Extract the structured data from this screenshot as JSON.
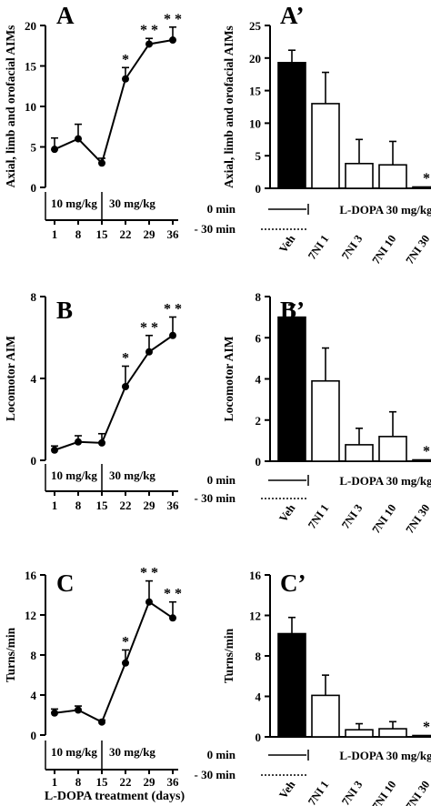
{
  "x_axis_title": "L-DOPA treatment (days)",
  "chart_data": [
    {
      "id": "A",
      "type": "line",
      "panel_label": "A",
      "ylabel": "Axial, limb and orofacial AIMs",
      "ylim": [
        0,
        20
      ],
      "yticks": [
        "0",
        "5",
        "10",
        "15",
        "20"
      ],
      "x": [
        1,
        8,
        15,
        22,
        29,
        36
      ],
      "x_tick_labels": [
        "1",
        "8",
        "15",
        "22",
        "29",
        "36"
      ],
      "values": [
        4.7,
        6.0,
        3.0,
        13.4,
        17.7,
        18.2
      ],
      "errors": [
        1.4,
        1.8,
        0.6,
        1.4,
        0.7,
        1.6
      ],
      "significance": [
        "",
        "",
        "",
        "*",
        "* *",
        "* *"
      ],
      "dose_labels": [
        "10 mg/kg",
        "30 mg/kg"
      ]
    },
    {
      "id": "A2",
      "type": "bar",
      "panel_label": "A’",
      "ylabel": "Axial, limb and orofacial AIMs",
      "ylim": [
        0,
        25
      ],
      "yticks": [
        "0",
        "5",
        "10",
        "15",
        "20",
        "25"
      ],
      "categories": [
        "Veh",
        "7NI 1",
        "7NI 3",
        "7NI 10",
        "7NI 30"
      ],
      "values": [
        19.3,
        13.0,
        3.8,
        3.6,
        0.1
      ],
      "errors": [
        1.9,
        4.8,
        3.7,
        3.6,
        0.0
      ],
      "filled": [
        true,
        false,
        false,
        false,
        false
      ],
      "significance": [
        "",
        "",
        "",
        "",
        "*"
      ],
      "time_labels": [
        "0 min",
        "- 30 min"
      ],
      "treatment_label": "L-DOPA 30 mg/kg"
    },
    {
      "id": "B",
      "type": "line",
      "panel_label": "B",
      "ylabel": "Locomotor AIM",
      "ylim": [
        0,
        8
      ],
      "yticks": [
        "0",
        "4",
        "8"
      ],
      "x": [
        1,
        8,
        15,
        22,
        29,
        36
      ],
      "x_tick_labels": [
        "1",
        "8",
        "15",
        "22",
        "29",
        "36"
      ],
      "values": [
        0.5,
        0.9,
        0.85,
        3.6,
        5.3,
        6.1
      ],
      "errors": [
        0.2,
        0.3,
        0.45,
        1.0,
        0.8,
        0.9
      ],
      "significance": [
        "",
        "",
        "",
        "*",
        "* *",
        "* *"
      ],
      "dose_labels": [
        "10 mg/kg",
        "30 mg/kg"
      ]
    },
    {
      "id": "B2",
      "type": "bar",
      "panel_label": "B’",
      "ylabel": "Locomotor AIM",
      "ylim": [
        0,
        8
      ],
      "yticks": [
        "0",
        "2",
        "4",
        "6",
        "8"
      ],
      "categories": [
        "Veh",
        "7NI 1",
        "7NI 3",
        "7NI 10",
        "7NI 30"
      ],
      "values": [
        7.0,
        3.9,
        0.8,
        1.2,
        0.05
      ],
      "errors": [
        0.6,
        1.6,
        0.8,
        1.2,
        0.0
      ],
      "filled": [
        true,
        false,
        false,
        false,
        false
      ],
      "significance": [
        "",
        "",
        "",
        "",
        "*"
      ],
      "time_labels": [
        "0 min",
        "- 30 min"
      ],
      "treatment_label": "L-DOPA 30 mg/kg"
    },
    {
      "id": "C",
      "type": "line",
      "panel_label": "C",
      "ylabel": "Turns/min",
      "ylim": [
        0,
        16
      ],
      "yticks": [
        "0",
        "4",
        "8",
        "12",
        "16"
      ],
      "x": [
        1,
        8,
        15,
        22,
        29,
        36
      ],
      "x_tick_labels": [
        "1",
        "8",
        "15",
        "22",
        "29",
        "36"
      ],
      "values": [
        2.2,
        2.5,
        1.3,
        7.2,
        13.3,
        11.7
      ],
      "errors": [
        0.4,
        0.4,
        0.2,
        1.3,
        2.1,
        1.6
      ],
      "significance": [
        "",
        "",
        "",
        "*",
        "* *",
        "* *"
      ],
      "dose_labels": [
        "10 mg/kg",
        "30 mg/kg"
      ]
    },
    {
      "id": "C2",
      "type": "bar",
      "panel_label": "C’",
      "ylabel": "Turns/min",
      "ylim": [
        0,
        16
      ],
      "yticks": [
        "0",
        "4",
        "8",
        "12",
        "16"
      ],
      "categories": [
        "Veh",
        "7NI 1",
        "7NI 3",
        "7NI 10",
        "7NI 30"
      ],
      "values": [
        10.2,
        4.1,
        0.7,
        0.8,
        0.05
      ],
      "errors": [
        1.6,
        2.0,
        0.6,
        0.7,
        0.0
      ],
      "filled": [
        true,
        false,
        false,
        false,
        false
      ],
      "significance": [
        "",
        "",
        "",
        "",
        "*"
      ],
      "time_labels": [
        "0 min",
        "- 30 min"
      ],
      "treatment_label": "L-DOPA 30 mg/kg"
    }
  ]
}
